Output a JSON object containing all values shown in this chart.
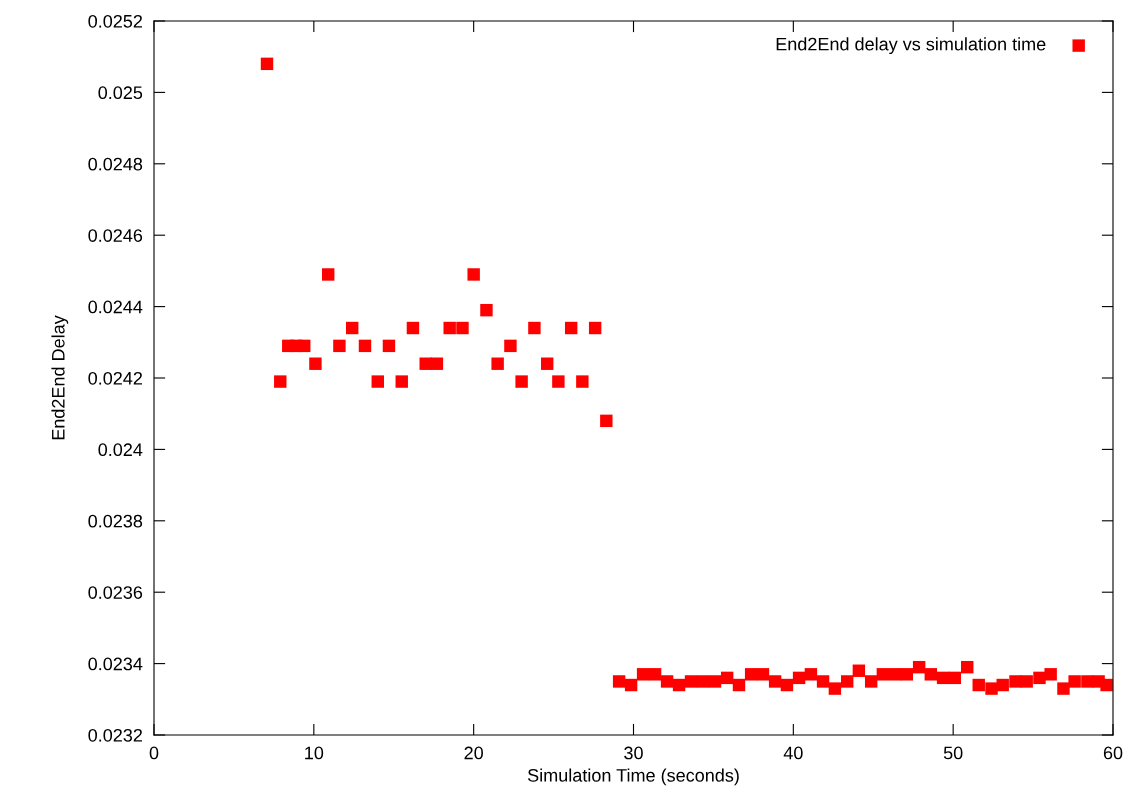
{
  "chart_data": {
    "type": "scatter",
    "xlabel": "Simulation Time (seconds)",
    "ylabel": "End2End Delay",
    "xlim": [
      0,
      60
    ],
    "xticks": [
      0,
      10,
      20,
      30,
      40,
      50,
      60
    ],
    "ylim": [
      0.0232,
      0.0252
    ],
    "yticks": [
      0.0232,
      0.0234,
      0.0236,
      0.0238,
      0.024,
      0.0242,
      0.0244,
      0.0246,
      0.0248,
      0.025,
      0.0252
    ],
    "grid": false,
    "legend": "top right",
    "marker": "square",
    "series": [
      {
        "name": "End2End delay vs simulation time",
        "color": "#ff0000",
        "x": [
          7.07,
          7.9,
          8.4,
          8.9,
          9.4,
          10.1,
          10.9,
          11.6,
          12.4,
          13.2,
          14.0,
          14.7,
          15.5,
          16.2,
          17.0,
          17.7,
          18.5,
          19.3,
          20.0,
          20.8,
          21.5,
          22.3,
          23.0,
          23.8,
          24.6,
          25.3,
          26.1,
          26.8,
          27.6,
          28.3,
          29.1,
          29.85,
          30.6,
          31.35,
          32.1,
          32.85,
          33.6,
          34.35,
          35.1,
          35.86,
          36.6,
          37.36,
          38.1,
          38.86,
          39.6,
          40.36,
          41.1,
          41.86,
          42.6,
          43.37,
          44.1,
          44.87,
          45.6,
          46.37,
          47.1,
          47.87,
          48.6,
          49.37,
          50.1,
          50.88,
          51.6,
          52.4,
          53.1,
          53.9,
          54.6,
          55.4,
          56.1,
          56.9,
          57.6,
          58.4,
          59.1,
          59.6
        ],
        "values": [
          0.02508,
          0.02419,
          0.02429,
          0.02429,
          0.02429,
          0.02424,
          0.02449,
          0.02429,
          0.02434,
          0.02429,
          0.02419,
          0.02429,
          0.02419,
          0.02434,
          0.02424,
          0.02424,
          0.02434,
          0.02434,
          0.02449,
          0.02439,
          0.02424,
          0.02429,
          0.02419,
          0.02434,
          0.02424,
          0.02419,
          0.02434,
          0.02419,
          0.02434,
          0.02408,
          0.02335,
          0.02334,
          0.02337,
          0.02337,
          0.02335,
          0.02334,
          0.02335,
          0.02335,
          0.02335,
          0.02336,
          0.02334,
          0.02337,
          0.02337,
          0.02335,
          0.02334,
          0.02336,
          0.02337,
          0.02335,
          0.02333,
          0.02335,
          0.02338,
          0.02335,
          0.02337,
          0.02337,
          0.02337,
          0.02339,
          0.02337,
          0.02336,
          0.02336,
          0.02339,
          0.02334,
          0.02333,
          0.02334,
          0.02335,
          0.02335,
          0.02336,
          0.02337,
          0.02333,
          0.02335,
          0.02335,
          0.02335,
          0.02334
        ]
      }
    ]
  }
}
